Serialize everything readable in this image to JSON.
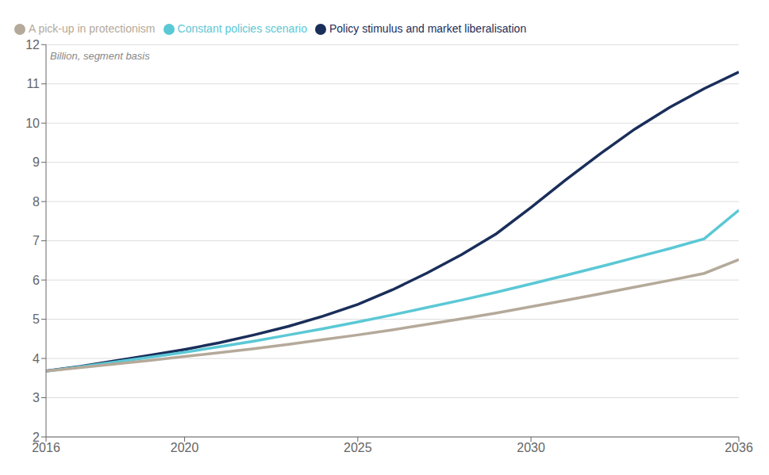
{
  "chart_data": {
    "type": "line",
    "subtitle": "Billion, segment basis",
    "x": [
      2016,
      2017,
      2018,
      2019,
      2020,
      2021,
      2022,
      2023,
      2024,
      2025,
      2026,
      2027,
      2028,
      2029,
      2030,
      2031,
      2032,
      2033,
      2034,
      2035,
      2036
    ],
    "series": [
      {
        "name": "Policy stimulus and market liberalisation",
        "color": "#1a2e5a",
        "values": [
          3.68,
          3.8,
          3.94,
          4.08,
          4.23,
          4.4,
          4.6,
          4.82,
          5.08,
          5.38,
          5.75,
          6.18,
          6.65,
          7.18,
          7.85,
          8.55,
          9.22,
          9.85,
          10.4,
          10.88,
          11.3
        ]
      },
      {
        "name": "Constant policies scenario",
        "color": "#5bc8d5",
        "values": [
          3.68,
          3.79,
          3.91,
          4.03,
          4.16,
          4.3,
          4.44,
          4.6,
          4.76,
          4.93,
          5.11,
          5.3,
          5.49,
          5.69,
          5.9,
          6.12,
          6.34,
          6.57,
          6.8,
          7.05,
          7.78
        ]
      },
      {
        "name": "A pick-up in protectionism",
        "color": "#b5a99a",
        "values": [
          3.68,
          3.77,
          3.86,
          3.95,
          4.05,
          4.15,
          4.25,
          4.36,
          4.48,
          4.6,
          4.73,
          4.87,
          5.01,
          5.16,
          5.32,
          5.48,
          5.65,
          5.82,
          5.99,
          6.17,
          6.52
        ]
      }
    ],
    "xlim": [
      2016,
      2036
    ],
    "ylim": [
      2,
      12
    ],
    "xticks": [
      2016,
      2020,
      2025,
      2030,
      2036
    ],
    "yticks": [
      2,
      3,
      4,
      5,
      6,
      7,
      8,
      9,
      10,
      11,
      12
    ],
    "grid": "y",
    "legend": "top-left"
  }
}
